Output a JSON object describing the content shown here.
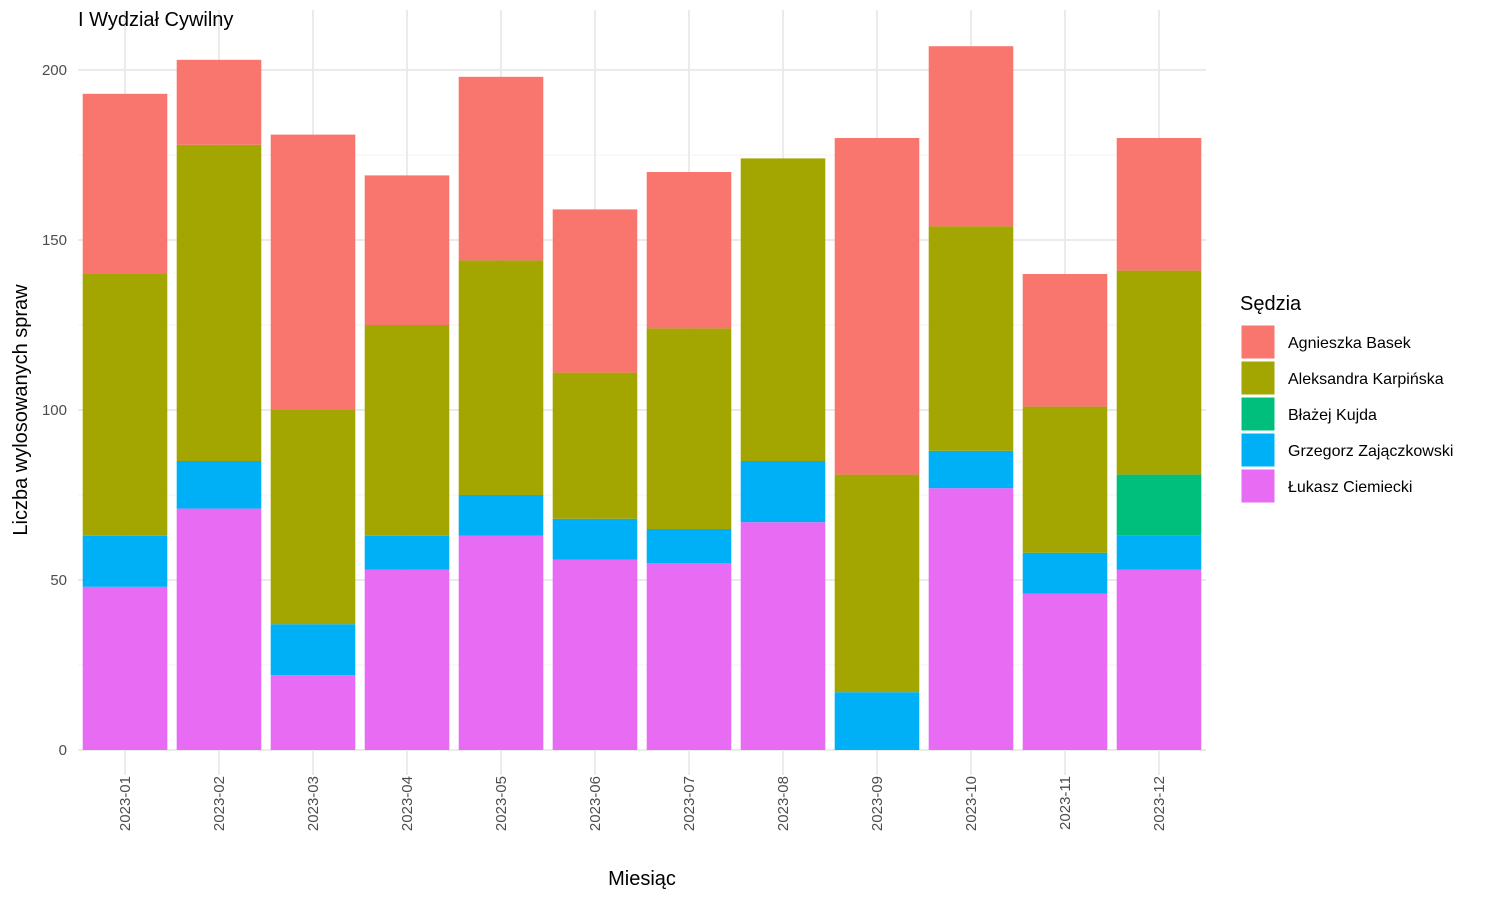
{
  "chart_data": {
    "type": "bar",
    "stacked": true,
    "title": "I Wydział Cywilny",
    "xlabel": "Miesiąc",
    "ylabel": "Liczba wylosowanych spraw",
    "ylim": [
      0,
      210
    ],
    "yticks": [
      0,
      50,
      100,
      150,
      200
    ],
    "grid": true,
    "legend_title": "Sędzia",
    "legend_position": "right",
    "categories": [
      "2023-01",
      "2023-02",
      "2023-03",
      "2023-04",
      "2023-05",
      "2023-06",
      "2023-07",
      "2023-08",
      "2023-09",
      "2023-10",
      "2023-11",
      "2023-12"
    ],
    "series": [
      {
        "name": "Agnieszka Basek",
        "color": "#F8766D",
        "values": [
          53,
          25,
          81,
          44,
          54,
          48,
          46,
          0,
          99,
          53,
          39,
          39
        ]
      },
      {
        "name": "Aleksandra Karpińska",
        "color": "#A3A500",
        "values": [
          77,
          93,
          63,
          62,
          69,
          43,
          59,
          89,
          64,
          66,
          43,
          60
        ]
      },
      {
        "name": "Błażej Kujda",
        "color": "#00BF7D",
        "values": [
          0,
          0,
          0,
          0,
          0,
          0,
          0,
          0,
          0,
          0,
          0,
          18
        ]
      },
      {
        "name": "Grzegorz Zajączkowski",
        "color": "#00B0F6",
        "values": [
          15,
          14,
          15,
          10,
          12,
          12,
          10,
          18,
          17,
          11,
          12,
          10
        ]
      },
      {
        "name": "Łukasz Ciemiecki",
        "color": "#E76BF3",
        "values": [
          48,
          71,
          22,
          53,
          63,
          56,
          55,
          67,
          0,
          77,
          46,
          53
        ]
      }
    ]
  }
}
